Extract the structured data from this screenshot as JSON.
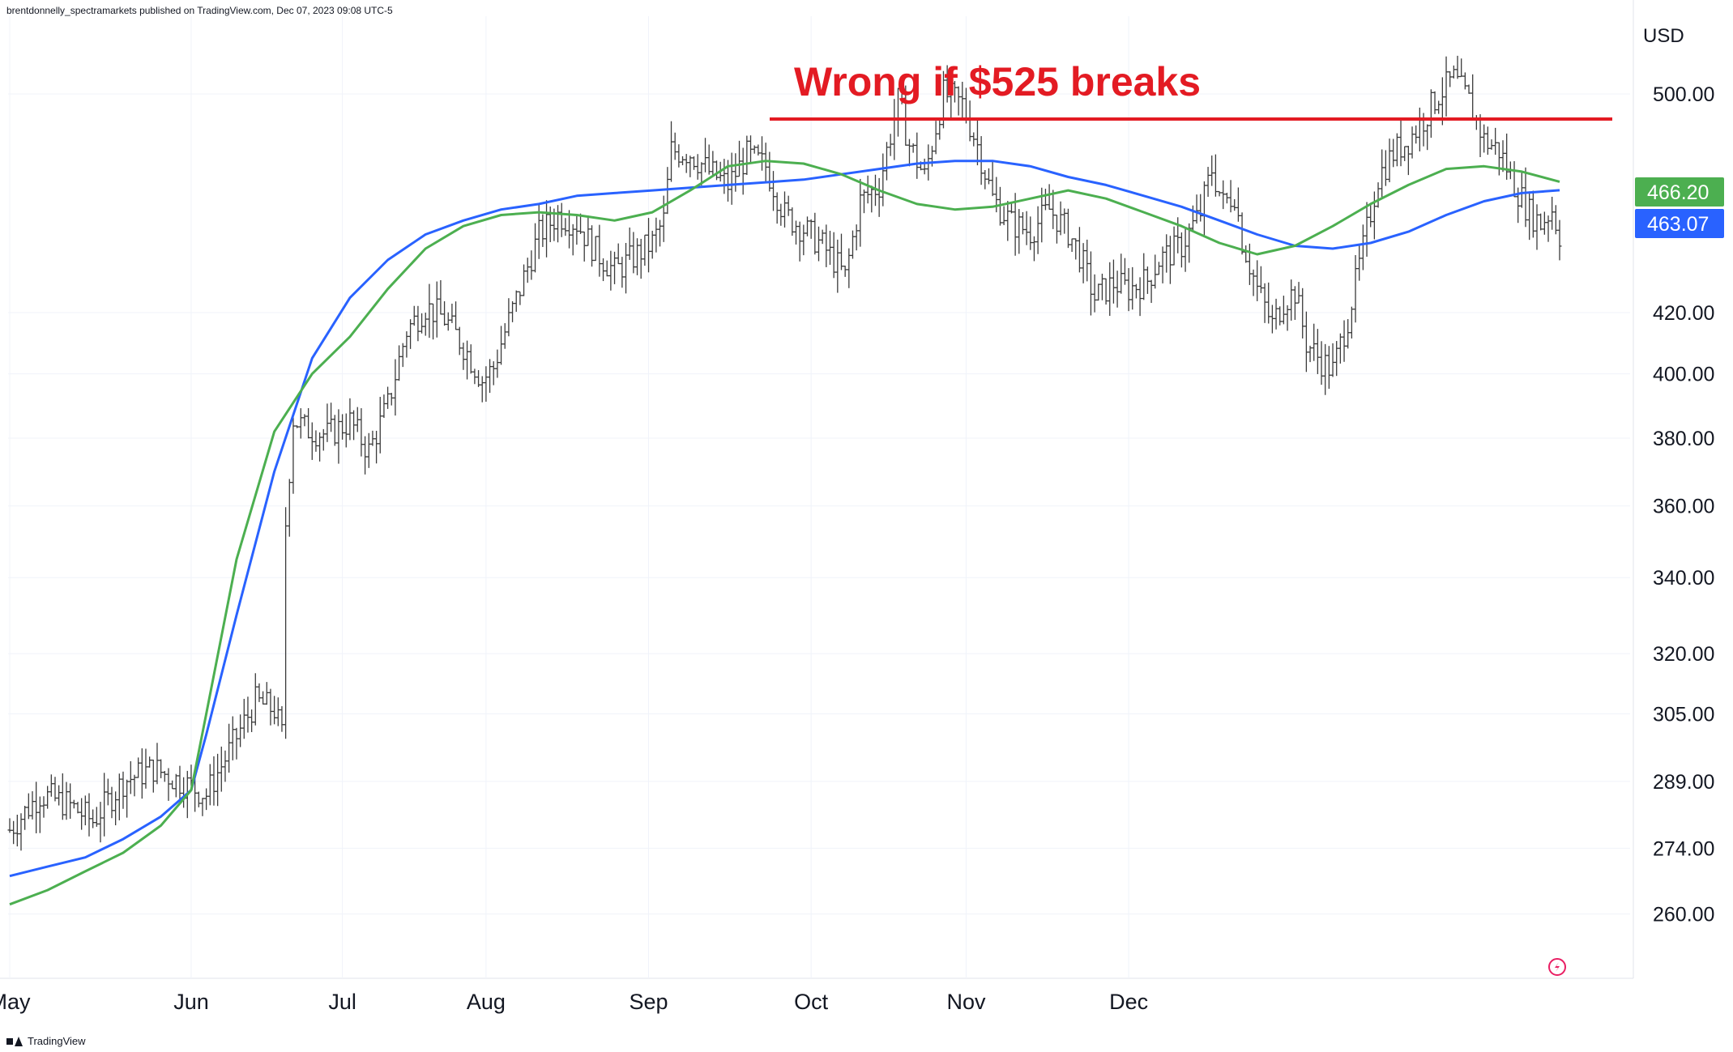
{
  "header": {
    "publisher_text": "brentdonnelly_spectramarkets published on TradingView.com, Dec 07, 2023 09:08 UTC-5"
  },
  "footer": {
    "brand": "TradingView"
  },
  "chart_data": {
    "type": "candlestick-line",
    "currency": "USD",
    "annotation": "Wrong if $525 breaks",
    "resistance_level": 525,
    "x_labels": [
      "May",
      "Jun",
      "Jul",
      "Aug",
      "Sep",
      "Oct",
      "Nov",
      "Dec"
    ],
    "y_ticks": [
      500.0,
      420.0,
      400.0,
      380.0,
      360.0,
      340.0,
      320.0,
      305.0,
      289.0,
      274.0,
      260.0
    ],
    "y_tick_labels": [
      "500.00",
      "420.00",
      "400.00",
      "380.00",
      "360.00",
      "340.00",
      "320.00",
      "305.00",
      "289.00",
      "274.00",
      "260.00"
    ],
    "ylim": [
      247,
      532
    ],
    "last_values": [
      {
        "label": "466.20",
        "value": 466.2,
        "color": "#4caf50"
      },
      {
        "label": "463.07",
        "value": 463.07,
        "color": "#2962ff"
      }
    ],
    "price_path": [
      [
        0,
        278
      ],
      [
        8,
        286
      ],
      [
        15,
        284
      ],
      [
        22,
        280
      ],
      [
        30,
        289
      ],
      [
        38,
        292
      ],
      [
        45,
        289
      ],
      [
        52,
        286
      ],
      [
        58,
        296
      ],
      [
        65,
        308
      ],
      [
        70,
        306
      ],
      [
        72,
        300
      ],
      [
        73,
        355
      ],
      [
        75,
        386
      ],
      [
        78,
        383
      ],
      [
        84,
        381
      ],
      [
        90,
        385
      ],
      [
        95,
        376
      ],
      [
        100,
        390
      ],
      [
        105,
        414
      ],
      [
        110,
        422
      ],
      [
        115,
        418
      ],
      [
        120,
        409
      ],
      [
        125,
        398
      ],
      [
        128,
        402
      ],
      [
        130,
        410
      ],
      [
        135,
        428
      ],
      [
        140,
        447
      ],
      [
        145,
        454
      ],
      [
        150,
        451
      ],
      [
        155,
        441
      ],
      [
        160,
        434
      ],
      [
        165,
        439
      ],
      [
        170,
        444
      ],
      [
        173,
        452
      ],
      [
        175,
        478
      ],
      [
        180,
        477
      ],
      [
        185,
        470
      ],
      [
        190,
        465
      ],
      [
        195,
        476
      ],
      [
        200,
        472
      ],
      [
        205,
        454
      ],
      [
        210,
        449
      ],
      [
        215,
        443
      ],
      [
        218,
        438
      ],
      [
        221,
        432
      ],
      [
        225,
        459
      ],
      [
        230,
        465
      ],
      [
        235,
        497
      ],
      [
        238,
        480
      ],
      [
        242,
        468
      ],
      [
        247,
        500
      ],
      [
        252,
        496
      ],
      [
        256,
        480
      ],
      [
        260,
        460
      ],
      [
        265,
        451
      ],
      [
        270,
        448
      ],
      [
        275,
        456
      ],
      [
        280,
        448
      ],
      [
        283,
        440
      ],
      [
        287,
        425
      ],
      [
        292,
        430
      ],
      [
        296,
        428
      ],
      [
        301,
        431
      ],
      [
        304,
        438
      ],
      [
        310,
        443
      ],
      [
        315,
        455
      ],
      [
        318,
        471
      ],
      [
        321,
        458
      ],
      [
        324,
        462
      ],
      [
        326,
        445
      ],
      [
        330,
        428
      ],
      [
        334,
        416
      ],
      [
        337,
        424
      ],
      [
        340,
        427
      ],
      [
        343,
        410
      ],
      [
        347,
        404
      ],
      [
        350,
        401
      ],
      [
        354,
        418
      ],
      [
        358,
        442
      ],
      [
        362,
        468
      ],
      [
        366,
        477
      ],
      [
        370,
        482
      ],
      [
        374,
        490
      ],
      [
        378,
        500
      ],
      [
        382,
        506
      ],
      [
        386,
        497
      ],
      [
        390,
        482
      ],
      [
        394,
        478
      ],
      [
        398,
        465
      ],
      [
        402,
        455
      ],
      [
        405,
        451
      ],
      [
        408,
        456
      ],
      [
        410,
        447
      ]
    ],
    "series": [
      {
        "color": "#2962ff",
        "points": [
          [
            0,
            268
          ],
          [
            10,
            270
          ],
          [
            20,
            272
          ],
          [
            30,
            276
          ],
          [
            40,
            281
          ],
          [
            48,
            287
          ],
          [
            52,
            300
          ],
          [
            60,
            330
          ],
          [
            70,
            370
          ],
          [
            80,
            405
          ],
          [
            90,
            425
          ],
          [
            100,
            438
          ],
          [
            110,
            447
          ],
          [
            120,
            452
          ],
          [
            130,
            456
          ],
          [
            140,
            458
          ],
          [
            150,
            461
          ],
          [
            160,
            462
          ],
          [
            170,
            463
          ],
          [
            180,
            464
          ],
          [
            190,
            465
          ],
          [
            200,
            466
          ],
          [
            210,
            467
          ],
          [
            220,
            469
          ],
          [
            230,
            471
          ],
          [
            240,
            473
          ],
          [
            250,
            474
          ],
          [
            260,
            474
          ],
          [
            270,
            472
          ],
          [
            280,
            468
          ],
          [
            290,
            465
          ],
          [
            300,
            461
          ],
          [
            310,
            457
          ],
          [
            320,
            452
          ],
          [
            330,
            447
          ],
          [
            340,
            443
          ],
          [
            350,
            442
          ],
          [
            360,
            444
          ],
          [
            370,
            448
          ],
          [
            380,
            454
          ],
          [
            390,
            459
          ],
          [
            400,
            462
          ],
          [
            410,
            463.07
          ]
        ]
      },
      {
        "color": "#4caf50",
        "points": [
          [
            0,
            262
          ],
          [
            10,
            265
          ],
          [
            20,
            269
          ],
          [
            30,
            273
          ],
          [
            40,
            279
          ],
          [
            48,
            287
          ],
          [
            52,
            305
          ],
          [
            60,
            345
          ],
          [
            70,
            382
          ],
          [
            80,
            400
          ],
          [
            90,
            412
          ],
          [
            100,
            428
          ],
          [
            110,
            442
          ],
          [
            120,
            450
          ],
          [
            130,
            454
          ],
          [
            140,
            455
          ],
          [
            150,
            454
          ],
          [
            160,
            452
          ],
          [
            170,
            455
          ],
          [
            180,
            463
          ],
          [
            190,
            472
          ],
          [
            200,
            474
          ],
          [
            210,
            473
          ],
          [
            220,
            469
          ],
          [
            230,
            463
          ],
          [
            240,
            458
          ],
          [
            250,
            456
          ],
          [
            260,
            457
          ],
          [
            270,
            460
          ],
          [
            280,
            463
          ],
          [
            290,
            460
          ],
          [
            300,
            455
          ],
          [
            310,
            450
          ],
          [
            320,
            444
          ],
          [
            330,
            440
          ],
          [
            340,
            443
          ],
          [
            350,
            450
          ],
          [
            360,
            458
          ],
          [
            370,
            465
          ],
          [
            380,
            471
          ],
          [
            390,
            472
          ],
          [
            400,
            470
          ],
          [
            410,
            466.2
          ]
        ]
      }
    ]
  }
}
